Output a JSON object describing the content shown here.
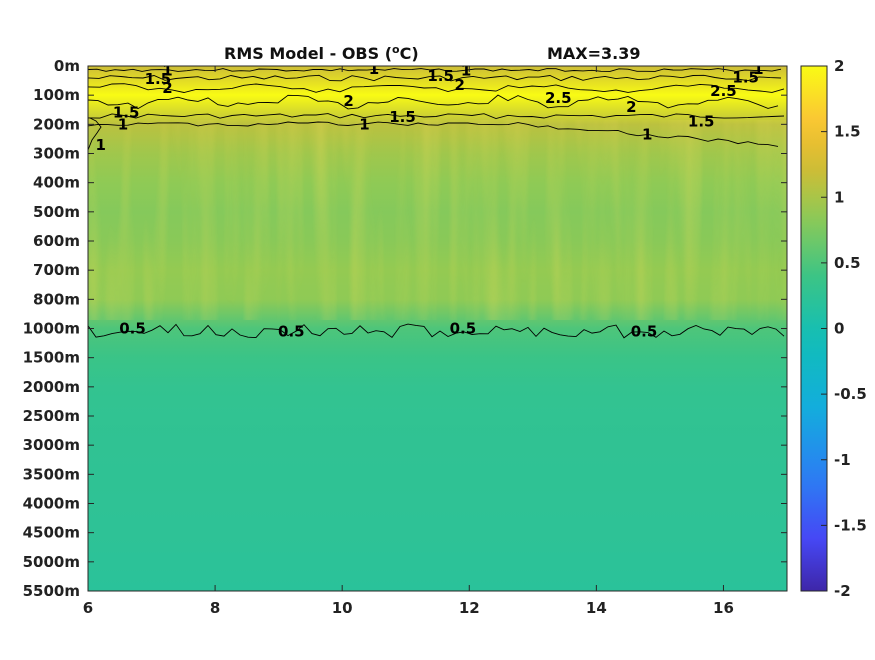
{
  "chart_data": {
    "type": "heatmap",
    "title": "RMS Model - OBS (",
    "title_sup": "o",
    "title_unit": "C)",
    "max_label": "MAX=3.39",
    "x_ticks": [
      "6",
      "8",
      "10",
      "12",
      "14",
      "16"
    ],
    "x_values": [
      6,
      8,
      10,
      12,
      14,
      16
    ],
    "xlim": [
      6,
      17
    ],
    "y_ticks": [
      "0m",
      "100m",
      "200m",
      "300m",
      "400m",
      "500m",
      "600m",
      "700m",
      "800m",
      "1000m",
      "1500m",
      "2000m",
      "2500m",
      "3000m",
      "3500m",
      "4000m",
      "4500m",
      "5000m",
      "5500m"
    ],
    "colorbar_ticks": [
      "2",
      "1.5",
      "1",
      "0.5",
      "0",
      "-0.5",
      "-1",
      "-1.5",
      "-2"
    ],
    "colorbar_values": [
      2,
      1.5,
      1,
      0.5,
      0,
      -0.5,
      -1,
      -1.5,
      -2
    ],
    "clim": [
      -2,
      2
    ],
    "colormap": "parula",
    "depth_profile": [
      {
        "depth": "0m",
        "value": 1.2
      },
      {
        "depth": "100m",
        "value": 2.3
      },
      {
        "depth": "200m",
        "value": 1.1
      },
      {
        "depth": "300m",
        "value": 0.95
      },
      {
        "depth": "400m",
        "value": 0.85
      },
      {
        "depth": "500m",
        "value": 0.8
      },
      {
        "depth": "600m",
        "value": 0.82
      },
      {
        "depth": "700m",
        "value": 0.88
      },
      {
        "depth": "800m",
        "value": 0.85
      },
      {
        "depth": "1000m",
        "value": 0.5
      },
      {
        "depth": "1500m",
        "value": 0.38
      },
      {
        "depth": "2000m",
        "value": 0.3
      },
      {
        "depth": "2500m",
        "value": 0.28
      },
      {
        "depth": "3000m",
        "value": 0.27
      },
      {
        "depth": "3500m",
        "value": 0.26
      },
      {
        "depth": "4000m",
        "value": 0.25
      },
      {
        "depth": "4500m",
        "value": 0.24
      },
      {
        "depth": "5000m",
        "value": 0.22
      },
      {
        "depth": "5500m",
        "value": 0.2
      }
    ],
    "contour_labels": [
      {
        "text": "1",
        "x": 7.25,
        "depth": 0.15
      },
      {
        "text": "1.5",
        "x": 7.1,
        "depth": 0.45
      },
      {
        "text": "2",
        "x": 7.25,
        "depth": 0.75
      },
      {
        "text": "1",
        "x": 10.5,
        "depth": 0.1
      },
      {
        "text": "1.5",
        "x": 11.55,
        "depth": 0.35
      },
      {
        "text": "1",
        "x": 11.95,
        "depth": 0.15
      },
      {
        "text": "2",
        "x": 11.85,
        "depth": 0.65
      },
      {
        "text": "2",
        "x": 10.1,
        "depth": 1.2
      },
      {
        "text": "2.5",
        "x": 13.4,
        "depth": 1.1
      },
      {
        "text": "2",
        "x": 14.55,
        "depth": 1.4
      },
      {
        "text": "1.5",
        "x": 10.95,
        "depth": 1.75
      },
      {
        "text": "1",
        "x": 10.35,
        "depth": 2.0
      },
      {
        "text": "1.5",
        "x": 6.6,
        "depth": 1.6
      },
      {
        "text": "1",
        "x": 6.55,
        "depth": 2.0
      },
      {
        "text": "1",
        "x": 6.2,
        "depth": 2.7
      },
      {
        "text": "1",
        "x": 14.8,
        "depth": 2.35
      },
      {
        "text": "1.5",
        "x": 15.65,
        "depth": 1.9
      },
      {
        "text": "2.5",
        "x": 16.0,
        "depth": 0.85
      },
      {
        "text": "1.5",
        "x": 16.35,
        "depth": 0.4
      },
      {
        "text": "1",
        "x": 16.55,
        "depth": 0.1
      },
      {
        "text": "0.5",
        "x": 6.7,
        "depth": 9.0
      },
      {
        "text": "0.5",
        "x": 9.2,
        "depth": 9.1
      },
      {
        "text": "0.5",
        "x": 11.9,
        "depth": 9.0
      },
      {
        "text": "0.5",
        "x": 14.75,
        "depth": 9.1
      }
    ]
  }
}
